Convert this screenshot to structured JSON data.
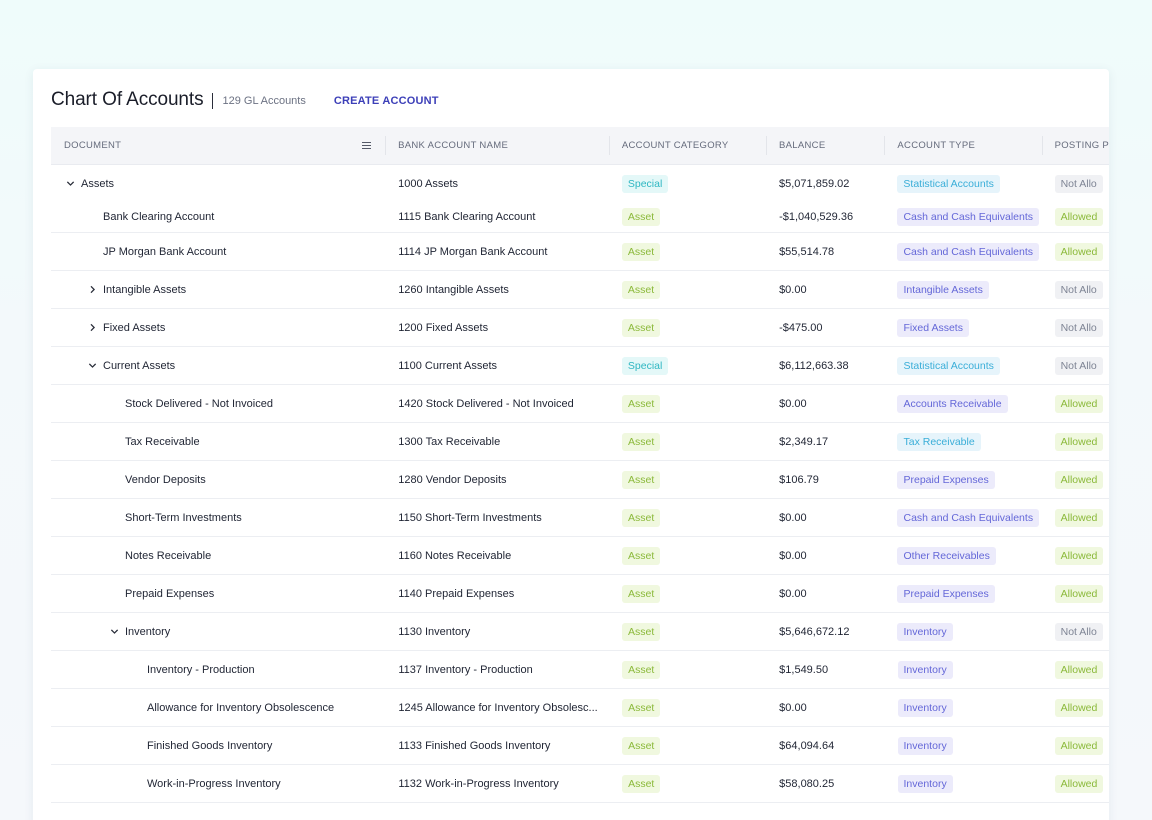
{
  "header": {
    "title": "Chart Of Accounts",
    "count": "129 GL Accounts",
    "create_label": "CREATE ACCOUNT"
  },
  "columns": [
    "DOCUMENT",
    "BANK ACCOUNT NAME",
    "ACCOUNT CATEGORY",
    "BALANCE",
    "ACCOUNT TYPE",
    "POSTING P"
  ],
  "rows": [
    {
      "level": 0,
      "toggle": "expanded",
      "doc": "Assets",
      "bank": "1000 Assets",
      "category": "Special",
      "balance": "$5,071,859.02",
      "type": "Statistical Accounts",
      "type_style": "cyan",
      "posting": "Not Allo"
    },
    {
      "level": 1,
      "toggle": "none",
      "doc": "Bank Clearing Account",
      "bank": "1115 Bank Clearing Account",
      "category": "Asset",
      "balance": "-$1,040,529.36",
      "type": "Cash and Cash Equivalents",
      "type_style": "purple",
      "posting": "Allowed"
    },
    {
      "level": 1,
      "toggle": "none",
      "doc": "JP Morgan Bank Account",
      "bank": "1114 JP Morgan Bank Account",
      "category": "Asset",
      "balance": "$55,514.78",
      "type": "Cash and Cash Equivalents",
      "type_style": "purple",
      "posting": "Allowed"
    },
    {
      "level": 1,
      "toggle": "collapsed",
      "doc": "Intangible Assets",
      "bank": "1260 Intangible Assets",
      "category": "Asset",
      "balance": "$0.00",
      "type": "Intangible Assets",
      "type_style": "purple",
      "posting": "Not Allo"
    },
    {
      "level": 1,
      "toggle": "collapsed",
      "doc": "Fixed Assets",
      "bank": "1200 Fixed Assets",
      "category": "Asset",
      "balance": "-$475.00",
      "type": "Fixed Assets",
      "type_style": "purple",
      "posting": "Not Allo"
    },
    {
      "level": 1,
      "toggle": "expanded",
      "doc": "Current Assets",
      "bank": "1100 Current Assets",
      "category": "Special",
      "balance": "$6,112,663.38",
      "type": "Statistical Accounts",
      "type_style": "cyan",
      "posting": "Not Allo"
    },
    {
      "level": 2,
      "toggle": "none",
      "doc": "Stock Delivered - Not Invoiced",
      "bank": "1420 Stock Delivered - Not Invoiced",
      "category": "Asset",
      "balance": "$0.00",
      "type": "Accounts Receivable",
      "type_style": "purple",
      "posting": "Allowed"
    },
    {
      "level": 2,
      "toggle": "none",
      "doc": "Tax Receivable",
      "bank": "1300 Tax Receivable",
      "category": "Asset",
      "balance": "$2,349.17",
      "type": "Tax Receivable",
      "type_style": "cyan",
      "posting": "Allowed"
    },
    {
      "level": 2,
      "toggle": "none",
      "doc": "Vendor Deposits",
      "bank": "1280 Vendor Deposits",
      "category": "Asset",
      "balance": "$106.79",
      "type": "Prepaid Expenses",
      "type_style": "purple",
      "posting": "Allowed"
    },
    {
      "level": 2,
      "toggle": "none",
      "doc": "Short-Term Investments",
      "bank": "1150 Short-Term Investments",
      "category": "Asset",
      "balance": "$0.00",
      "type": "Cash and Cash Equivalents",
      "type_style": "purple",
      "posting": "Allowed"
    },
    {
      "level": 2,
      "toggle": "none",
      "doc": "Notes Receivable",
      "bank": "1160 Notes Receivable",
      "category": "Asset",
      "balance": "$0.00",
      "type": "Other Receivables",
      "type_style": "purple",
      "posting": "Allowed"
    },
    {
      "level": 2,
      "toggle": "none",
      "doc": "Prepaid Expenses",
      "bank": "1140 Prepaid Expenses",
      "category": "Asset",
      "balance": "$0.00",
      "type": "Prepaid Expenses",
      "type_style": "purple",
      "posting": "Allowed"
    },
    {
      "level": 2,
      "toggle": "expanded",
      "doc": "Inventory",
      "bank": "1130 Inventory",
      "category": "Asset",
      "balance": "$5,646,672.12",
      "type": "Inventory",
      "type_style": "purple",
      "posting": "Not Allo"
    },
    {
      "level": 3,
      "toggle": "none",
      "doc": "Inventory - Production",
      "bank": "1137 Inventory - Production",
      "category": "Asset",
      "balance": "$1,549.50",
      "type": "Inventory",
      "type_style": "purple",
      "posting": "Allowed"
    },
    {
      "level": 3,
      "toggle": "none",
      "doc": "Allowance for Inventory Obsolescence",
      "bank": "1245 Allowance for Inventory Obsolesc...",
      "category": "Asset",
      "balance": "$0.00",
      "type": "Inventory",
      "type_style": "purple",
      "posting": "Allowed"
    },
    {
      "level": 3,
      "toggle": "none",
      "doc": "Finished Goods Inventory",
      "bank": "1133 Finished Goods Inventory",
      "category": "Asset",
      "balance": "$64,094.64",
      "type": "Inventory",
      "type_style": "purple",
      "posting": "Allowed"
    },
    {
      "level": 3,
      "toggle": "none",
      "doc": "Work-in-Progress Inventory",
      "bank": "1132 Work-in-Progress Inventory",
      "category": "Asset",
      "balance": "$58,080.25",
      "type": "Inventory",
      "type_style": "purple",
      "posting": "Allowed"
    }
  ]
}
